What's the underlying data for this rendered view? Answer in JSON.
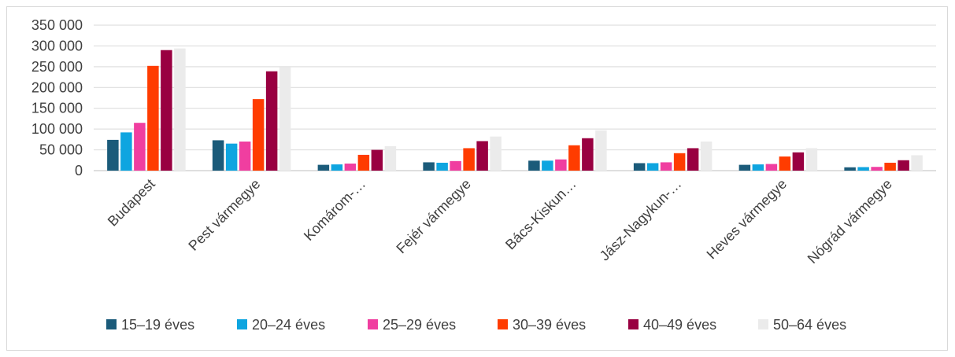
{
  "chart_data": {
    "type": "bar",
    "title": "",
    "xlabel": "",
    "ylabel": "",
    "ylim": [
      0,
      350000
    ],
    "yticks": [
      0,
      50000,
      100000,
      150000,
      200000,
      250000,
      300000,
      350000
    ],
    "ytick_labels": [
      "0",
      "50 000",
      "100 000",
      "150 000",
      "200 000",
      "250 000",
      "300 000",
      "350 000"
    ],
    "grid": true,
    "legend_position": "bottom",
    "categories": [
      "Budapest",
      "Pest vármegye",
      "Komárom-…",
      "Fejér vármegye",
      "Bács-Kiskun…",
      "Jász-Nagykun-…",
      "Heves vármegye",
      "Nógrád vármegye"
    ],
    "series": [
      {
        "name": "15–19 éves",
        "color": "#1b5b7a",
        "values": [
          74000,
          73000,
          14000,
          20000,
          24000,
          18000,
          14000,
          8000
        ]
      },
      {
        "name": "20–24 éves",
        "color": "#0ea5e0",
        "values": [
          92000,
          65000,
          15000,
          19000,
          24000,
          18000,
          15000,
          8500
        ]
      },
      {
        "name": "25–29 éves",
        "color": "#f03ea0",
        "values": [
          115000,
          70000,
          17000,
          23000,
          27000,
          20000,
          16000,
          9000
        ]
      },
      {
        "name": "30–39 éves",
        "color": "#ff3c00",
        "values": [
          252000,
          172000,
          38000,
          54000,
          61000,
          42000,
          34000,
          19000
        ]
      },
      {
        "name": "40–49 éves",
        "color": "#990041",
        "values": [
          290000,
          239000,
          50000,
          71000,
          78000,
          54000,
          44000,
          25000
        ]
      },
      {
        "name": "50–64 éves",
        "color": "#ebebeb",
        "values": [
          294000,
          249000,
          59000,
          82000,
          97000,
          70000,
          54000,
          37000
        ]
      }
    ]
  }
}
